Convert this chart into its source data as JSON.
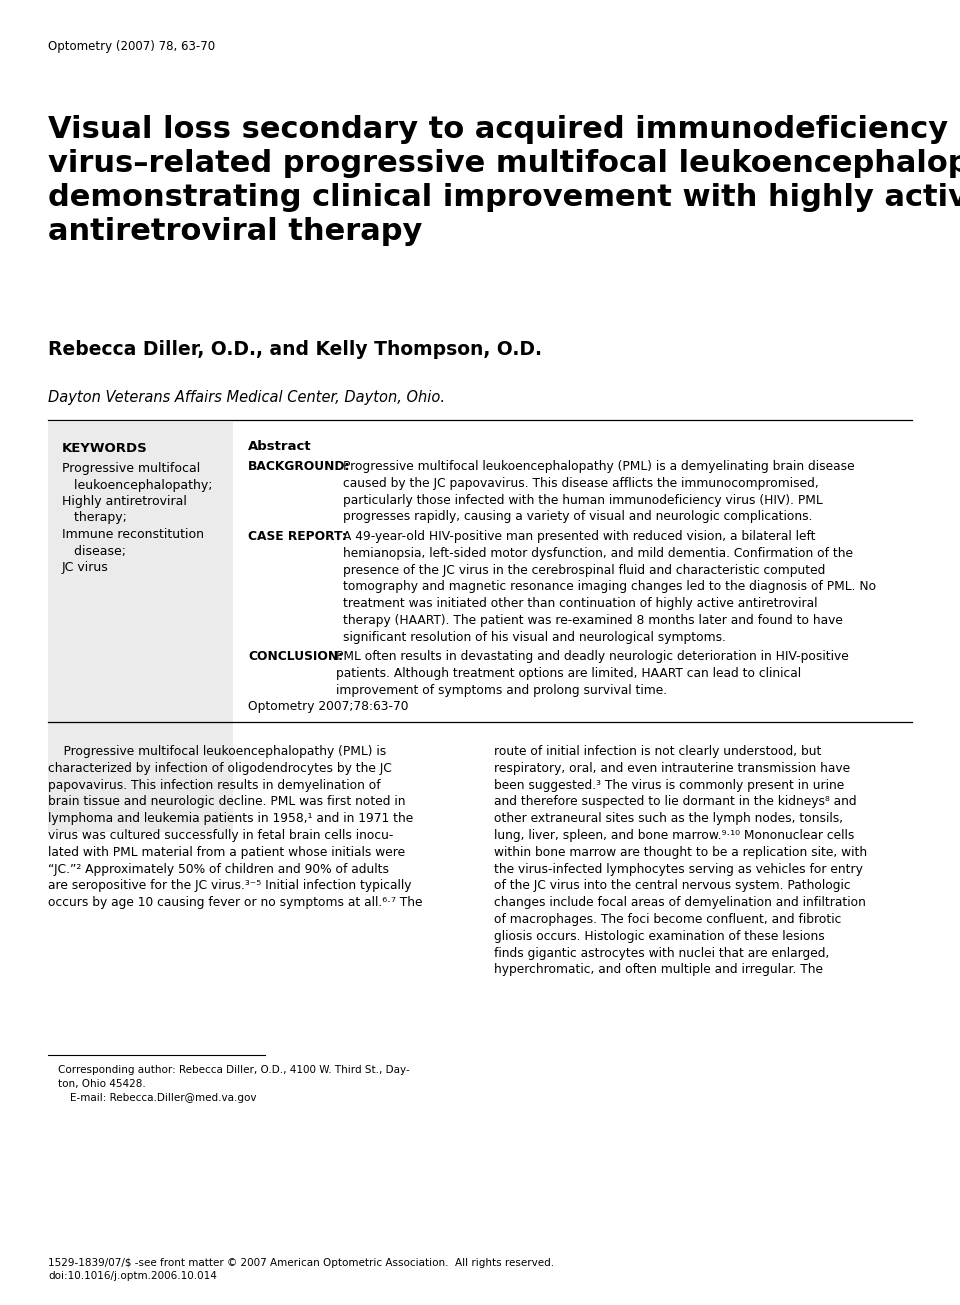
{
  "bg_color": "#ffffff",
  "header_journal": "Optometry (2007) 78, 63-70",
  "title": "Visual loss secondary to acquired immunodeficiency\nvirus–related progressive multifocal leukoencephalopathy\ndemonstrating clinical improvement with highly active\nantiretroviral therapy",
  "authors": "Rebecca Diller, O.D., and Kelly Thompson, O.D.",
  "affiliation": "Dayton Veterans Affairs Medical Center, Dayton, Ohio.",
  "footer_text": "1529-1839/07/$ -see front matter © 2007 American Optometric Association.  All rights reserved.\ndoi:10.1016/j.optm.2006.10.014"
}
